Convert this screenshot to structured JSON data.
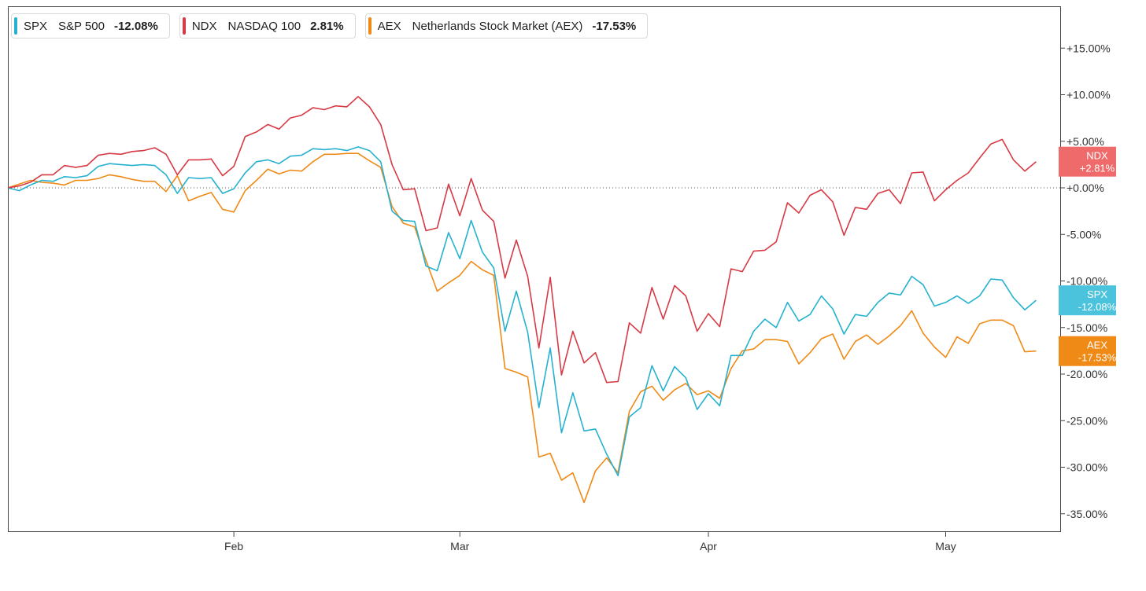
{
  "chart_data": {
    "type": "line",
    "title": "",
    "xlabel": "",
    "ylabel": "",
    "ylim": [
      -37,
      19
    ],
    "y_unit": "%",
    "y_ticks": [
      15,
      10,
      5,
      0,
      -5,
      -10,
      -15,
      -20,
      -25,
      -30,
      -35
    ],
    "y_tick_labels": [
      "+15.00%",
      "+10.00%",
      "+5.00%",
      "+0.00%",
      "-5.00%",
      "-10.00%",
      "-15.00%",
      "-20.00%",
      "-25.00%",
      "-30.00%",
      "-35.00%"
    ],
    "x_ticks": [
      {
        "label": "Feb",
        "index": 20
      },
      {
        "label": "Mar",
        "index": 40
      },
      {
        "label": "Apr",
        "index": 62
      },
      {
        "label": "May",
        "index": 83
      }
    ],
    "x_count": 91,
    "zero_line": true,
    "legend_position": "top-left",
    "series": [
      {
        "symbol": "SPX",
        "name": "S&P 500",
        "legend_value": "-12.08%",
        "tag_line1": "SPX",
        "tag_line2": "-12.08%",
        "color": "#26b2cf",
        "tag_color": "#4bc3dc",
        "values": [
          0,
          -0.3,
          0.3,
          0.8,
          0.7,
          1.2,
          1.1,
          1.3,
          2.3,
          2.6,
          2.5,
          2.4,
          2.5,
          2.4,
          1.4,
          -0.6,
          1.1,
          1.0,
          1.1,
          -0.6,
          -0.1,
          1.6,
          2.8,
          3.0,
          2.6,
          3.4,
          3.5,
          4.2,
          4.1,
          4.2,
          4.0,
          4.4,
          4.0,
          2.8,
          -2.5,
          -3.5,
          -3.6,
          -8.4,
          -8.9,
          -4.8,
          -7.6,
          -3.5,
          -6.9,
          -8.6,
          -15.4,
          -11.1,
          -15.5,
          -23.6,
          -17.2,
          -26.3,
          -22.0,
          -26.1,
          -25.9,
          -28.6,
          -30.9,
          -24.6,
          -23.6,
          -19.1,
          -21.8,
          -19.2,
          -20.4,
          -23.8,
          -22.1,
          -23.4,
          -18.0,
          -18.0,
          -15.4,
          -14.1,
          -15.0,
          -12.3,
          -14.3,
          -13.6,
          -11.6,
          -13.0,
          -15.7,
          -13.6,
          -13.8,
          -12.3,
          -11.3,
          -11.5,
          -9.5,
          -10.4,
          -12.7,
          -12.3,
          -11.6,
          -12.4,
          -11.6,
          -9.8,
          -9.9,
          -11.8,
          -13.1,
          -12.08
        ]
      },
      {
        "symbol": "NDX",
        "name": "NASDAQ 100",
        "legend_value": "2.81%",
        "tag_line1": "NDX",
        "tag_line2": "+2.81%",
        "color": "#d73a45",
        "tag_color": "#ef6b6b",
        "values": [
          0,
          0.2,
          0.6,
          1.4,
          1.4,
          2.4,
          2.2,
          2.4,
          3.5,
          3.7,
          3.6,
          3.9,
          4.0,
          4.3,
          3.6,
          1.4,
          3.0,
          3.0,
          3.1,
          1.3,
          2.3,
          5.5,
          6.0,
          6.8,
          6.3,
          7.5,
          7.8,
          8.6,
          8.4,
          8.8,
          8.7,
          9.8,
          8.7,
          6.8,
          2.5,
          -0.2,
          -0.1,
          -4.6,
          -4.3,
          0.4,
          -3.0,
          1.0,
          -2.4,
          -3.6,
          -9.7,
          -5.6,
          -9.5,
          -17.2,
          -9.6,
          -20.1,
          -15.4,
          -18.8,
          -17.7,
          -20.9,
          -20.8,
          -14.5,
          -15.6,
          -10.7,
          -14.1,
          -10.5,
          -11.6,
          -15.4,
          -13.5,
          -14.9,
          -8.7,
          -9.0,
          -6.8,
          -6.7,
          -5.8,
          -1.6,
          -2.7,
          -0.8,
          -0.2,
          -1.5,
          -5.1,
          -2.1,
          -2.3,
          -0.6,
          -0.2,
          -1.7,
          1.6,
          1.7,
          -1.4,
          -0.2,
          0.8,
          1.6,
          3.2,
          4.7,
          5.2,
          3.0,
          1.8,
          2.81
        ]
      },
      {
        "symbol": "AEX",
        "name": "Netherlands Stock Market (AEX)",
        "legend_value": "-17.53%",
        "tag_line1": "AEX",
        "tag_line2": "-17.53%",
        "color": "#f08a17",
        "tag_color": "#f08a17",
        "values": [
          0,
          0.4,
          0.8,
          0.6,
          0.5,
          0.3,
          0.8,
          0.8,
          1.0,
          1.4,
          1.2,
          0.9,
          0.7,
          0.7,
          -0.4,
          1.3,
          -1.4,
          -0.9,
          -0.5,
          -2.3,
          -2.6,
          -0.3,
          0.8,
          2.0,
          1.5,
          1.9,
          1.8,
          2.8,
          3.6,
          3.6,
          3.7,
          3.7,
          2.9,
          2.2,
          -2.0,
          -3.8,
          -4.2,
          -7.8,
          -11.1,
          -10.2,
          -9.4,
          -7.9,
          -8.8,
          -9.4,
          -19.4,
          -19.8,
          -20.3,
          -28.9,
          -28.5,
          -31.4,
          -30.6,
          -33.8,
          -30.4,
          -29.0,
          -30.6,
          -24.0,
          -21.9,
          -21.3,
          -22.8,
          -21.7,
          -21.0,
          -22.2,
          -21.8,
          -22.6,
          -19.4,
          -17.5,
          -17.3,
          -16.3,
          -16.3,
          -16.5,
          -18.9,
          -17.7,
          -16.2,
          -15.7,
          -18.4,
          -16.5,
          -15.8,
          -16.8,
          -15.9,
          -14.8,
          -13.2,
          -15.6,
          -17.1,
          -18.2,
          -16.0,
          -16.7,
          -14.6,
          -14.2,
          -14.2,
          -14.8,
          -17.6,
          -17.53
        ]
      }
    ]
  }
}
